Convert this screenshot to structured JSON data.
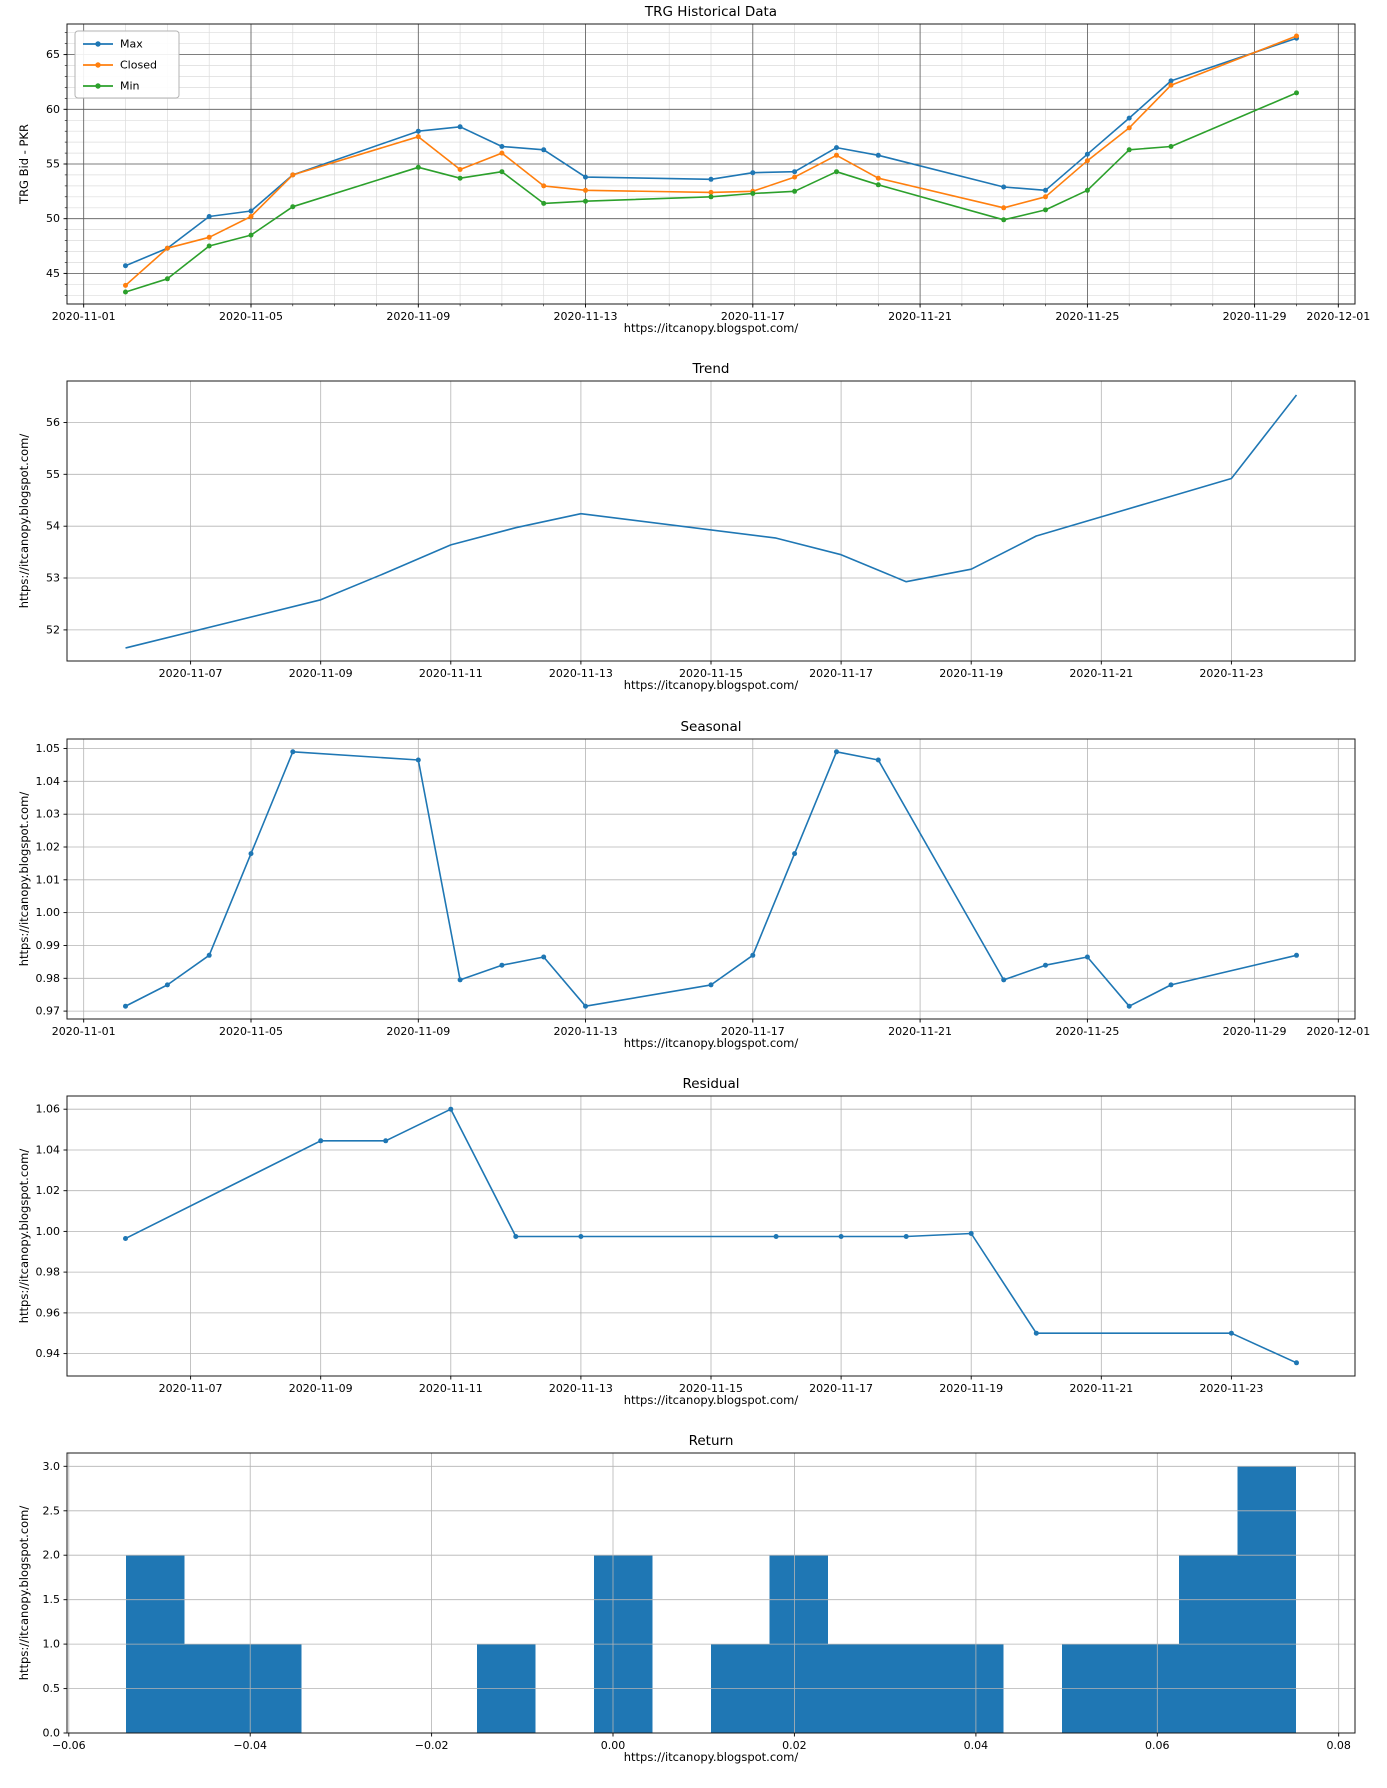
{
  "figure": {
    "background": "#ffffff",
    "watermark_link": "https://itcanopy.blogspot.com/"
  },
  "colors": {
    "max_line": "#1f77b4",
    "closed_line": "#ff7f0e",
    "min_line": "#2ca02c",
    "histogram_bar": "#1f77b4",
    "grid_dark": "#5a5a5a",
    "grid_minor": "#dcdcdc",
    "grid_light": "#b4b4b4"
  },
  "chart_data": [
    {
      "id": "historical",
      "type": "line",
      "title": "TRG Historical Data",
      "xlabel": "https://itcanopy.blogspot.com/",
      "ylabel": "TRG Bid - PKR",
      "legend_show": true,
      "legend_position": "upper-left",
      "grid_major": "#5a5a5a",
      "grid_minor": "#dcdcdc",
      "xlim": [
        0.6,
        31.4
      ],
      "ylim": [
        42.2,
        67.8
      ],
      "minor": {
        "x_from": 1,
        "x_to": 31,
        "x_step": 1,
        "y_from": 43,
        "y_to": 67,
        "y_step": 1
      },
      "xticks": [
        {
          "v": 1,
          "label": "2020-11-01"
        },
        {
          "v": 5,
          "label": "2020-11-05"
        },
        {
          "v": 9,
          "label": "2020-11-09"
        },
        {
          "v": 13,
          "label": "2020-11-13"
        },
        {
          "v": 17,
          "label": "2020-11-17"
        },
        {
          "v": 21,
          "label": "2020-11-21"
        },
        {
          "v": 25,
          "label": "2020-11-25"
        },
        {
          "v": 29,
          "label": "2020-11-29"
        },
        {
          "v": 31,
          "label": "2020-12-01"
        }
      ],
      "yticks": [
        {
          "v": 45,
          "label": "45"
        },
        {
          "v": 50,
          "label": "50"
        },
        {
          "v": 55,
          "label": "55"
        },
        {
          "v": 60,
          "label": "60"
        },
        {
          "v": 65,
          "label": "65"
        }
      ],
      "x_dates": [
        "2020-11-02",
        "2020-11-03",
        "2020-11-04",
        "2020-11-05",
        "2020-11-06",
        "2020-11-09",
        "2020-11-10",
        "2020-11-11",
        "2020-11-12",
        "2020-11-13",
        "2020-11-16",
        "2020-11-17",
        "2020-11-18",
        "2020-11-19",
        "2020-11-20",
        "2020-11-23",
        "2020-11-24",
        "2020-11-25",
        "2020-11-26",
        "2020-11-27",
        "2020-11-30"
      ],
      "x_days": [
        2,
        3,
        4,
        5,
        6,
        9,
        10,
        11,
        12,
        13,
        16,
        17,
        18,
        19,
        20,
        23,
        24,
        25,
        26,
        27,
        30
      ],
      "series": [
        {
          "name": "Max",
          "color": "#1f77b4",
          "marker": true,
          "values": [
            45.7,
            47.3,
            50.2,
            50.7,
            54.0,
            58.0,
            58.4,
            56.6,
            56.3,
            53.8,
            53.6,
            54.2,
            54.3,
            56.5,
            55.8,
            52.9,
            52.6,
            55.9,
            59.2,
            62.6,
            66.5
          ]
        },
        {
          "name": "Closed",
          "color": "#ff7f0e",
          "marker": true,
          "values": [
            43.9,
            47.3,
            48.3,
            50.2,
            54.0,
            57.5,
            54.5,
            56.0,
            53.0,
            52.6,
            52.4,
            52.5,
            53.8,
            55.8,
            53.7,
            51.0,
            52.0,
            55.3,
            58.3,
            62.2,
            66.7
          ]
        },
        {
          "name": "Min",
          "color": "#2ca02c",
          "marker": true,
          "values": [
            43.3,
            44.5,
            47.5,
            48.5,
            51.1,
            54.7,
            53.7,
            54.3,
            51.4,
            51.6,
            52.0,
            52.3,
            52.5,
            54.3,
            53.1,
            49.9,
            50.8,
            52.6,
            56.3,
            56.6,
            61.5
          ]
        }
      ]
    },
    {
      "id": "trend",
      "type": "line",
      "title": "Trend",
      "xlabel": "https://itcanopy.blogspot.com/",
      "ylabel": "https://itcanopy.blogspot.com/",
      "legend_show": false,
      "grid_major": "#b4b4b4",
      "xlim": [
        5.1,
        24.9
      ],
      "ylim": [
        51.4,
        56.8
      ],
      "xticks": [
        {
          "v": 7,
          "label": "2020-11-07"
        },
        {
          "v": 9,
          "label": "2020-11-09"
        },
        {
          "v": 11,
          "label": "2020-11-11"
        },
        {
          "v": 13,
          "label": "2020-11-13"
        },
        {
          "v": 15,
          "label": "2020-11-15"
        },
        {
          "v": 17,
          "label": "2020-11-17"
        },
        {
          "v": 19,
          "label": "2020-11-19"
        },
        {
          "v": 21,
          "label": "2020-11-21"
        },
        {
          "v": 23,
          "label": "2020-11-23"
        }
      ],
      "yticks": [
        {
          "v": 52,
          "label": "52"
        },
        {
          "v": 53,
          "label": "53"
        },
        {
          "v": 54,
          "label": "54"
        },
        {
          "v": 55,
          "label": "55"
        },
        {
          "v": 56,
          "label": "56"
        }
      ],
      "x_dates": [
        "2020-11-06",
        "2020-11-09",
        "2020-11-10",
        "2020-11-11",
        "2020-11-12",
        "2020-11-13",
        "2020-11-16",
        "2020-11-17",
        "2020-11-18",
        "2020-11-19",
        "2020-11-20",
        "2020-11-23",
        "2020-11-24"
      ],
      "x_days": [
        6,
        9,
        10,
        11,
        12,
        13,
        16,
        17,
        18,
        19,
        20,
        23,
        24
      ],
      "series": [
        {
          "name": "Trend",
          "color": "#1f77b4",
          "marker": false,
          "values": [
            51.65,
            52.58,
            53.1,
            53.64,
            53.97,
            54.24,
            53.77,
            53.45,
            52.93,
            53.17,
            53.81,
            54.92,
            56.53
          ]
        }
      ]
    },
    {
      "id": "seasonal",
      "type": "line",
      "title": "Seasonal",
      "xlabel": "https://itcanopy.blogspot.com/",
      "ylabel": "https://itcanopy.blogspot.com/",
      "legend_show": false,
      "grid_major": "#b4b4b4",
      "xlim": [
        0.6,
        31.4
      ],
      "ylim": [
        0.9676,
        1.0529
      ],
      "xticks": [
        {
          "v": 1,
          "label": "2020-11-01"
        },
        {
          "v": 5,
          "label": "2020-11-05"
        },
        {
          "v": 9,
          "label": "2020-11-09"
        },
        {
          "v": 13,
          "label": "2020-11-13"
        },
        {
          "v": 17,
          "label": "2020-11-17"
        },
        {
          "v": 21,
          "label": "2020-11-21"
        },
        {
          "v": 25,
          "label": "2020-11-25"
        },
        {
          "v": 29,
          "label": "2020-11-29"
        },
        {
          "v": 31,
          "label": "2020-12-01"
        }
      ],
      "yticks": [
        {
          "v": 0.97,
          "label": "0.97"
        },
        {
          "v": 0.98,
          "label": "0.98"
        },
        {
          "v": 0.99,
          "label": "0.99"
        },
        {
          "v": 1.0,
          "label": "1.00"
        },
        {
          "v": 1.01,
          "label": "1.01"
        },
        {
          "v": 1.02,
          "label": "1.02"
        },
        {
          "v": 1.03,
          "label": "1.03"
        },
        {
          "v": 1.04,
          "label": "1.04"
        },
        {
          "v": 1.05,
          "label": "1.05"
        }
      ],
      "x_dates": [
        "2020-11-02",
        "2020-11-03",
        "2020-11-04",
        "2020-11-05",
        "2020-11-06",
        "2020-11-09",
        "2020-11-10",
        "2020-11-11",
        "2020-11-12",
        "2020-11-13",
        "2020-11-16",
        "2020-11-17",
        "2020-11-18",
        "2020-11-19",
        "2020-11-20",
        "2020-11-23",
        "2020-11-24",
        "2020-11-25",
        "2020-11-26",
        "2020-11-27",
        "2020-11-30"
      ],
      "x_days": [
        2,
        3,
        4,
        5,
        6,
        9,
        10,
        11,
        12,
        13,
        16,
        17,
        18,
        19,
        20,
        23,
        24,
        25,
        26,
        27,
        30
      ],
      "series": [
        {
          "name": "Seasonal",
          "color": "#1f77b4",
          "marker": true,
          "values": [
            0.9715,
            0.978,
            0.987,
            1.018,
            1.049,
            1.0465,
            0.9795,
            0.984,
            0.9865,
            0.9715,
            0.978,
            0.987,
            1.018,
            1.049,
            1.0465,
            0.9795,
            0.984,
            0.9865,
            0.9715,
            0.978,
            0.987
          ]
        }
      ]
    },
    {
      "id": "residual",
      "type": "line",
      "title": "Residual",
      "xlabel": "https://itcanopy.blogspot.com/",
      "ylabel": "https://itcanopy.blogspot.com/",
      "legend_show": false,
      "grid_major": "#b4b4b4",
      "xlim": [
        5.1,
        24.9
      ],
      "ylim": [
        0.929,
        1.0665
      ],
      "xticks": [
        {
          "v": 7,
          "label": "2020-11-07"
        },
        {
          "v": 9,
          "label": "2020-11-09"
        },
        {
          "v": 11,
          "label": "2020-11-11"
        },
        {
          "v": 13,
          "label": "2020-11-13"
        },
        {
          "v": 15,
          "label": "2020-11-15"
        },
        {
          "v": 17,
          "label": "2020-11-17"
        },
        {
          "v": 19,
          "label": "2020-11-19"
        },
        {
          "v": 21,
          "label": "2020-11-21"
        },
        {
          "v": 23,
          "label": "2020-11-23"
        }
      ],
      "yticks": [
        {
          "v": 0.94,
          "label": "0.94"
        },
        {
          "v": 0.96,
          "label": "0.96"
        },
        {
          "v": 0.98,
          "label": "0.98"
        },
        {
          "v": 1.0,
          "label": "1.00"
        },
        {
          "v": 1.02,
          "label": "1.02"
        },
        {
          "v": 1.04,
          "label": "1.04"
        },
        {
          "v": 1.06,
          "label": "1.06"
        }
      ],
      "x_dates": [
        "2020-11-06",
        "2020-11-09",
        "2020-11-10",
        "2020-11-11",
        "2020-11-12",
        "2020-11-13",
        "2020-11-16",
        "2020-11-17",
        "2020-11-18",
        "2020-11-19",
        "2020-11-20",
        "2020-11-23",
        "2020-11-24"
      ],
      "x_days": [
        6,
        9,
        10,
        11,
        12,
        13,
        16,
        17,
        18,
        19,
        20,
        23,
        24
      ],
      "series": [
        {
          "name": "Residual",
          "color": "#1f77b4",
          "marker": true,
          "values": [
            0.9965,
            1.0445,
            1.0445,
            1.06,
            0.9975,
            0.9975,
            0.9975,
            0.9975,
            0.9975,
            0.999,
            0.95,
            0.95,
            0.9355
          ]
        }
      ]
    },
    {
      "id": "return",
      "type": "histogram",
      "title": "Return",
      "xlabel": "https://itcanopy.blogspot.com/",
      "ylabel": "https://itcanopy.blogspot.com/",
      "legend_show": false,
      "grid_major": "#b4b4b4",
      "color": "#1f77b4",
      "xlim": [
        -0.0602,
        0.0818
      ],
      "ylim": [
        0,
        3.15
      ],
      "bin_start": -0.0537,
      "bin_width": 0.00645,
      "counts": [
        2,
        1,
        1,
        0,
        0,
        0,
        1,
        0,
        2,
        0,
        1,
        2,
        1,
        1,
        1,
        0,
        1,
        1,
        2,
        3
      ],
      "xticks": [
        {
          "v": -0.06,
          "label": "−0.06"
        },
        {
          "v": -0.04,
          "label": "−0.04"
        },
        {
          "v": -0.02,
          "label": "−0.02"
        },
        {
          "v": 0,
          "label": "0.00"
        },
        {
          "v": 0.02,
          "label": "0.02"
        },
        {
          "v": 0.04,
          "label": "0.04"
        },
        {
          "v": 0.06,
          "label": "0.06"
        },
        {
          "v": 0.08,
          "label": "0.08"
        }
      ],
      "yticks": [
        {
          "v": 0,
          "label": "0.0"
        },
        {
          "v": 0.5,
          "label": "0.5"
        },
        {
          "v": 1,
          "label": "1.0"
        },
        {
          "v": 1.5,
          "label": "1.5"
        },
        {
          "v": 2,
          "label": "2.0"
        },
        {
          "v": 2.5,
          "label": "2.5"
        },
        {
          "v": 3,
          "label": "3.0"
        }
      ]
    }
  ]
}
